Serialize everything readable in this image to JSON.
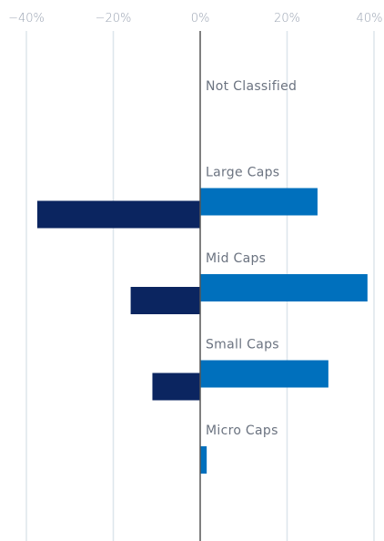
{
  "chart_data": {
    "type": "bar",
    "orientation": "horizontal",
    "title": "",
    "xlabel": "",
    "ylabel": "",
    "xlim": [
      -40,
      40
    ],
    "x_ticks": [
      -40,
      -20,
      0,
      20,
      40
    ],
    "x_tick_labels": [
      "-40%",
      "-20%",
      "0%",
      "20%",
      "40%"
    ],
    "grid": true,
    "legend": "none",
    "categories": [
      "Not Classified",
      "Large Caps",
      "Mid Caps",
      "Small Caps",
      "Micro Caps"
    ],
    "series": [
      {
        "values": [
          0,
          27,
          38.5,
          29.5,
          1.5
        ],
        "color": "#0070bd"
      },
      {
        "values": [
          0,
          -37.5,
          -16,
          -11,
          0
        ],
        "color": "#0b2560"
      }
    ]
  },
  "colors": {
    "gridline": "#dde6ec",
    "zero_line": "#555555",
    "tick_text": "#9aa3b2",
    "category_text": "#6b7380"
  }
}
